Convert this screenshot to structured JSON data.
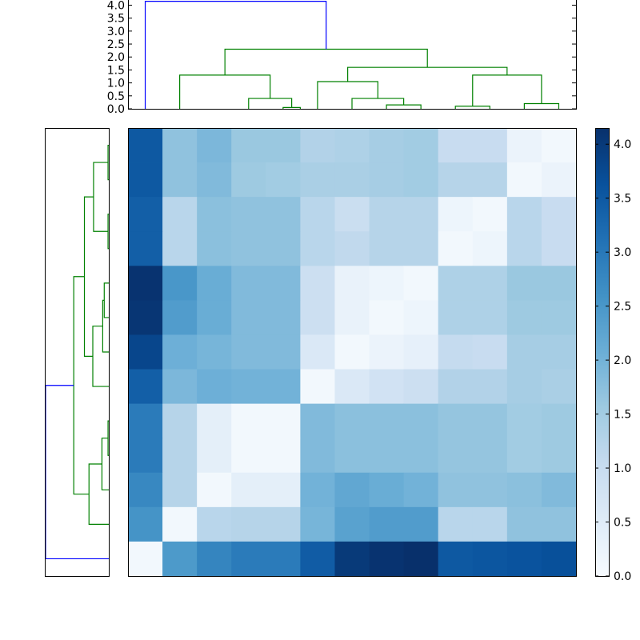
{
  "chart_data": [
    {
      "type": "heatmap",
      "title": "",
      "colormap": "Blues",
      "vmin": 0.0,
      "vmax": 4.15,
      "rows": 13,
      "cols": 13,
      "values": [
        [
          3.5,
          1.7,
          1.9,
          1.6,
          1.6,
          1.3,
          1.35,
          1.45,
          1.5,
          1.0,
          1.0,
          0.25,
          0.1
        ],
        [
          3.5,
          1.7,
          1.85,
          1.55,
          1.5,
          1.4,
          1.4,
          1.45,
          1.5,
          1.25,
          1.25,
          0.1,
          0.25
        ],
        [
          3.4,
          1.2,
          1.75,
          1.7,
          1.7,
          1.2,
          0.95,
          1.25,
          1.25,
          0.2,
          0.1,
          1.2,
          1.0
        ],
        [
          3.4,
          1.2,
          1.75,
          1.7,
          1.7,
          1.2,
          1.1,
          1.25,
          1.25,
          0.1,
          0.2,
          1.2,
          1.0
        ],
        [
          4.1,
          2.5,
          2.1,
          1.85,
          1.85,
          0.9,
          0.3,
          0.2,
          0.1,
          1.35,
          1.35,
          1.6,
          1.6
        ],
        [
          4.05,
          2.4,
          2.1,
          1.85,
          1.85,
          0.9,
          0.3,
          0.1,
          0.2,
          1.35,
          1.35,
          1.55,
          1.55
        ],
        [
          3.8,
          2.05,
          1.95,
          1.85,
          1.85,
          0.6,
          0.1,
          0.25,
          0.35,
          1.05,
          1.0,
          1.45,
          1.45
        ],
        [
          3.4,
          1.9,
          2.05,
          2.0,
          2.0,
          0.1,
          0.6,
          0.8,
          0.9,
          1.3,
          1.3,
          1.45,
          1.4
        ],
        [
          2.95,
          1.25,
          0.4,
          0.1,
          0.1,
          1.85,
          1.75,
          1.75,
          1.75,
          1.65,
          1.65,
          1.5,
          1.55
        ],
        [
          2.95,
          1.25,
          0.4,
          0.1,
          0.1,
          1.85,
          1.75,
          1.75,
          1.75,
          1.65,
          1.65,
          1.5,
          1.55
        ],
        [
          2.75,
          1.25,
          0.1,
          0.4,
          0.4,
          2.0,
          2.2,
          2.1,
          2.0,
          1.7,
          1.7,
          1.75,
          1.85
        ],
        [
          2.55,
          0.1,
          1.2,
          1.25,
          1.25,
          1.95,
          2.3,
          2.4,
          2.4,
          1.2,
          1.2,
          1.7,
          1.7
        ],
        [
          0.1,
          2.45,
          2.8,
          2.95,
          2.95,
          3.45,
          4.0,
          4.1,
          4.15,
          3.5,
          3.55,
          3.6,
          3.65
        ]
      ]
    },
    {
      "type": "dendrogram",
      "orientation": "top",
      "ylim": [
        0,
        4.2
      ],
      "ticks": [
        "0.0",
        "0.5",
        "1.0",
        "1.5",
        "2.0",
        "2.5",
        "3.0",
        "3.5",
        "4.0"
      ],
      "colors": {
        "cluster": "#008000",
        "root": "#0000ff"
      },
      "links": [
        {
          "xs": [
            9,
            9,
            10,
            10
          ],
          "ys": [
            0,
            0.05,
            0.05,
            0
          ],
          "color": "cluster"
        },
        {
          "xs": [
            7,
            7,
            9.5,
            9.5
          ],
          "ys": [
            0,
            0.4,
            0.4,
            0.05
          ],
          "color": "cluster"
        },
        {
          "xs": [
            3,
            3,
            8.25,
            8.25
          ],
          "ys": [
            0,
            1.3,
            1.3,
            0.4
          ],
          "color": "cluster"
        },
        {
          "xs": [
            15,
            15,
            17,
            17
          ],
          "ys": [
            0,
            0.15,
            0.15,
            0
          ],
          "color": "cluster"
        },
        {
          "xs": [
            13,
            13,
            16,
            16
          ],
          "ys": [
            0,
            0.4,
            0.4,
            0.15
          ],
          "color": "cluster"
        },
        {
          "xs": [
            11,
            11,
            14.5,
            14.5
          ],
          "ys": [
            0,
            1.05,
            1.05,
            0.4
          ],
          "color": "cluster"
        },
        {
          "xs": [
            19,
            19,
            21,
            21
          ],
          "ys": [
            0,
            0.1,
            0.1,
            0
          ],
          "color": "cluster"
        },
        {
          "xs": [
            23,
            23,
            25,
            25
          ],
          "ys": [
            0,
            0.2,
            0.2,
            0
          ],
          "color": "cluster"
        },
        {
          "xs": [
            20,
            20,
            24,
            24
          ],
          "ys": [
            0.1,
            1.3,
            1.3,
            0.2
          ],
          "color": "cluster"
        },
        {
          "xs": [
            12.75,
            12.75,
            22,
            22
          ],
          "ys": [
            1.05,
            1.6,
            1.6,
            1.3
          ],
          "color": "cluster"
        },
        {
          "xs": [
            5.625,
            5.625,
            17.375,
            17.375
          ],
          "ys": [
            1.3,
            2.3,
            2.3,
            1.6
          ],
          "color": "cluster"
        },
        {
          "xs": [
            1,
            1,
            11.5,
            11.5
          ],
          "ys": [
            0,
            4.15,
            4.15,
            2.3
          ],
          "color": "root"
        }
      ]
    },
    {
      "type": "dendrogram",
      "orientation": "left",
      "xlim": [
        0,
        4.2
      ],
      "colors": {
        "cluster": "#008000",
        "root": "#0000ff"
      },
      "links": [
        {
          "ys": [
            0,
            0,
            1,
            1
          ],
          "xs": [
            0,
            0.05,
            0.05,
            0
          ],
          "color": "cluster"
        },
        {
          "ys": [
            2,
            2,
            3,
            3
          ],
          "xs": [
            0,
            0.05,
            0.05,
            0
          ],
          "color": "cluster"
        },
        {
          "ys": [
            0.5,
            0.5,
            2.5,
            2.5
          ],
          "xs": [
            0.05,
            1.0,
            1.0,
            0.05
          ],
          "color": "cluster"
        },
        {
          "ys": [
            4,
            4,
            5,
            5
          ],
          "xs": [
            0,
            0.3,
            0.3,
            0
          ],
          "color": "cluster"
        },
        {
          "ys": [
            4.5,
            4.5,
            6,
            6
          ],
          "xs": [
            0.3,
            0.4,
            0.4,
            0
          ],
          "color": "cluster"
        },
        {
          "ys": [
            5.25,
            5.25,
            7,
            7
          ],
          "xs": [
            0.4,
            1.05,
            1.05,
            0
          ],
          "color": "cluster"
        },
        {
          "ys": [
            1.5,
            1.5,
            6.125,
            6.125
          ],
          "xs": [
            1.0,
            1.6,
            1.6,
            1.05
          ],
          "color": "cluster"
        },
        {
          "ys": [
            8,
            8,
            9,
            9
          ],
          "xs": [
            0,
            0.05,
            0.05,
            0
          ],
          "color": "cluster"
        },
        {
          "ys": [
            8.5,
            8.5,
            10,
            10
          ],
          "xs": [
            0.05,
            0.45,
            0.45,
            0
          ],
          "color": "cluster"
        },
        {
          "ys": [
            9.25,
            9.25,
            11,
            11
          ],
          "xs": [
            0.45,
            1.3,
            1.3,
            0
          ],
          "color": "cluster"
        },
        {
          "ys": [
            3.8125,
            3.8125,
            10.125,
            10.125
          ],
          "xs": [
            1.6,
            2.3,
            2.3,
            1.3
          ],
          "color": "cluster"
        },
        {
          "ys": [
            6.96875,
            6.96875,
            12,
            12
          ],
          "xs": [
            2.3,
            4.15,
            4.15,
            0
          ],
          "color": "root"
        }
      ]
    },
    {
      "type": "colorbar",
      "vmin": 0.0,
      "vmax": 4.15,
      "ticks": [
        "0.0",
        "0.5",
        "1.0",
        "1.5",
        "2.0",
        "2.5",
        "3.0",
        "3.5",
        "4.0"
      ]
    }
  ]
}
